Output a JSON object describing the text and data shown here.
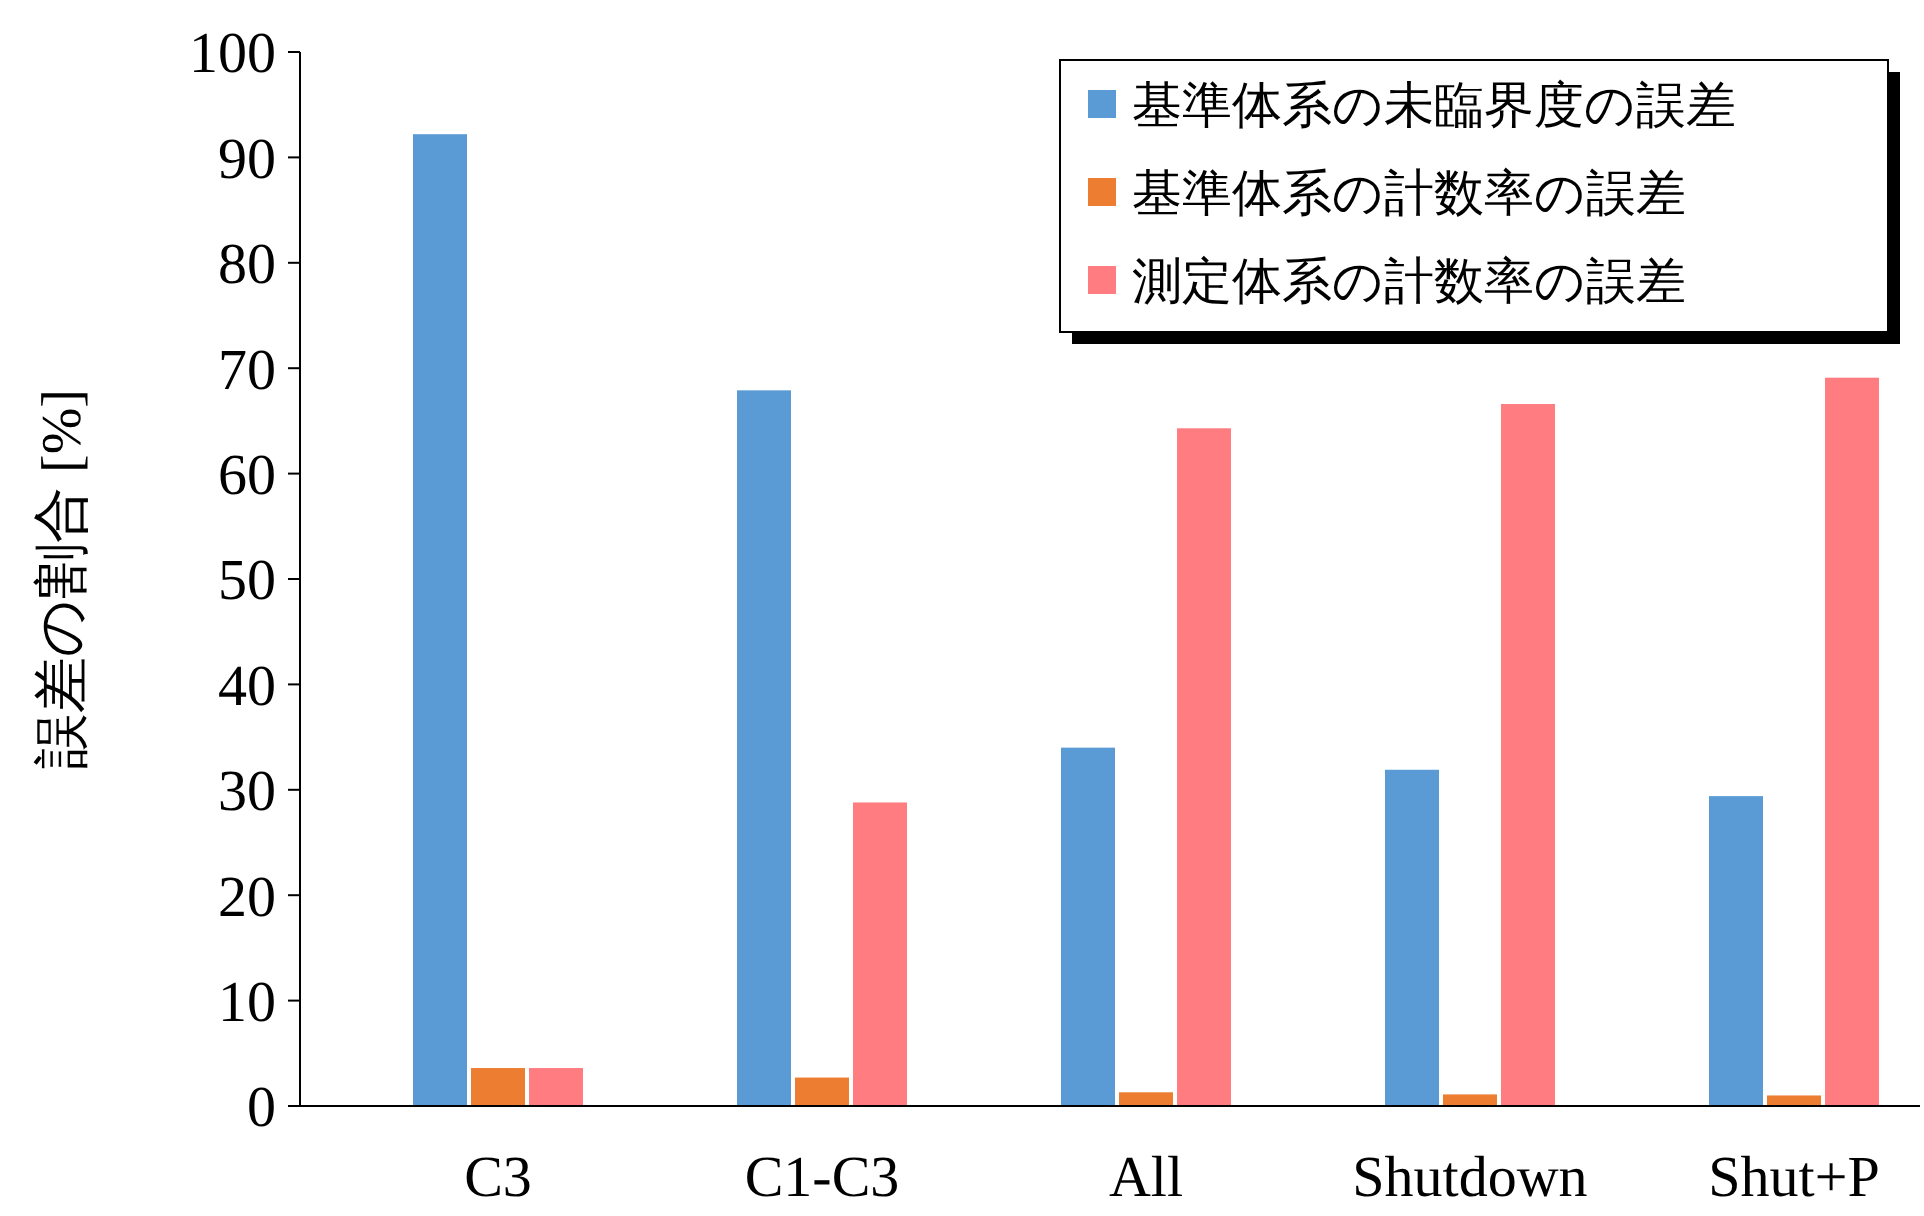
{
  "chart_data": {
    "type": "bar",
    "ylabel": "誤差の割合 [%]",
    "categories": [
      "C3",
      "C1-C3",
      "All",
      "Shutdown",
      "Shut+P"
    ],
    "series": [
      {
        "name": "基準体系の未臨界度の誤差",
        "color": "#5b9bd5",
        "values": [
          92.2,
          67.9,
          34.0,
          31.9,
          29.4
        ]
      },
      {
        "name": "基準体系の計数率の誤差",
        "color": "#ed7d31",
        "values": [
          3.6,
          2.7,
          1.3,
          1.1,
          1.0
        ]
      },
      {
        "name": "測定体系の計数率の誤差",
        "color": "#ff7c80",
        "values": [
          3.6,
          28.8,
          64.3,
          66.6,
          69.1
        ]
      }
    ],
    "ylim": [
      0,
      100
    ],
    "yticks": [
      0,
      10,
      20,
      30,
      40,
      50,
      60,
      70,
      80,
      90,
      100
    ],
    "grid": false,
    "legend": "top right"
  }
}
